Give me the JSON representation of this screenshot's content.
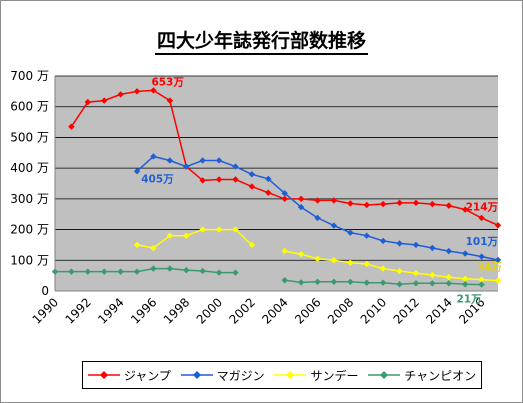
{
  "chart_data": {
    "type": "line",
    "title": "四大少年誌発行部数推移",
    "ylim": [
      0,
      700
    ],
    "yticks": [
      0,
      100,
      200,
      300,
      400,
      500,
      600,
      700
    ],
    "ytick_labels": [
      "0",
      "100 万",
      "200 万",
      "300 万",
      "400 万",
      "500 万",
      "600 万",
      "700 万"
    ],
    "xlim": [
      1990,
      2017
    ],
    "xticks": [
      1990,
      1992,
      1994,
      1996,
      1998,
      2000,
      2002,
      2004,
      2006,
      2008,
      2010,
      2012,
      2014,
      2016
    ],
    "grid": true,
    "legend_position": "bottom",
    "series": [
      {
        "name": "ジャンプ",
        "color": "#ff0000",
        "marker": "diamond",
        "points": [
          [
            1991,
            535
          ],
          [
            1992,
            615
          ],
          [
            1993,
            620
          ],
          [
            1994,
            640
          ],
          [
            1995,
            650
          ],
          [
            1996,
            653
          ],
          [
            1997,
            620
          ],
          [
            1998,
            405
          ],
          [
            1999,
            360
          ],
          [
            2000,
            363
          ],
          [
            2001,
            363
          ],
          [
            2002,
            340
          ],
          [
            2003,
            320
          ],
          [
            2004,
            300
          ],
          [
            2005,
            300
          ],
          [
            2006,
            295
          ],
          [
            2007,
            295
          ],
          [
            2008,
            285
          ],
          [
            2009,
            280
          ],
          [
            2010,
            283
          ],
          [
            2011,
            287
          ],
          [
            2012,
            287
          ],
          [
            2013,
            283
          ],
          [
            2014,
            278
          ],
          [
            2015,
            265
          ],
          [
            2016,
            238
          ],
          [
            2017,
            214
          ]
        ]
      },
      {
        "name": "マガジン",
        "color": "#1f5fd6",
        "marker": "diamond",
        "points": [
          [
            1995,
            390
          ],
          [
            1996,
            438
          ],
          [
            1997,
            425
          ],
          [
            1998,
            405
          ],
          [
            1999,
            425
          ],
          [
            2000,
            425
          ],
          [
            2001,
            405
          ],
          [
            2002,
            380
          ],
          [
            2003,
            365
          ],
          [
            2004,
            318
          ],
          [
            2005,
            273
          ],
          [
            2006,
            238
          ],
          [
            2007,
            213
          ],
          [
            2008,
            190
          ],
          [
            2009,
            180
          ],
          [
            2010,
            163
          ],
          [
            2011,
            155
          ],
          [
            2012,
            150
          ],
          [
            2013,
            140
          ],
          [
            2014,
            130
          ],
          [
            2015,
            122
          ],
          [
            2016,
            112
          ],
          [
            2017,
            101
          ]
        ]
      },
      {
        "name": "サンデー",
        "color": "#ffff00",
        "marker": "diamond",
        "segments": [
          [
            [
              1995,
              150
            ],
            [
              1996,
              140
            ],
            [
              1997,
              180
            ],
            [
              1998,
              180
            ],
            [
              1999,
              200
            ],
            [
              2000,
              200
            ],
            [
              2001,
              200
            ],
            [
              2002,
              150
            ]
          ],
          [
            [
              2004,
              130
            ],
            [
              2005,
              120
            ],
            [
              2006,
              105
            ],
            [
              2007,
              100
            ],
            [
              2008,
              92
            ],
            [
              2009,
              88
            ],
            [
              2010,
              73
            ],
            [
              2011,
              65
            ],
            [
              2012,
              58
            ],
            [
              2013,
              52
            ],
            [
              2014,
              45
            ],
            [
              2015,
              40
            ],
            [
              2016,
              37
            ],
            [
              2017,
              34
            ]
          ]
        ]
      },
      {
        "name": "チャンピオン",
        "color": "#3b9a6e",
        "marker": "diamond",
        "segments": [
          [
            [
              1990,
              63
            ],
            [
              1991,
              63
            ],
            [
              1992,
              63
            ],
            [
              1993,
              63
            ],
            [
              1994,
              63
            ],
            [
              1995,
              63
            ],
            [
              1996,
              73
            ],
            [
              1997,
              73
            ],
            [
              1998,
              68
            ],
            [
              1999,
              65
            ],
            [
              2000,
              60
            ],
            [
              2001,
              60
            ]
          ],
          [
            [
              2004,
              35
            ],
            [
              2005,
              28
            ],
            [
              2006,
              30
            ],
            [
              2007,
              30
            ],
            [
              2008,
              30
            ],
            [
              2009,
              27
            ],
            [
              2010,
              27
            ],
            [
              2011,
              22
            ],
            [
              2012,
              25
            ],
            [
              2013,
              25
            ],
            [
              2014,
              25
            ],
            [
              2015,
              22
            ],
            [
              2016,
              21
            ]
          ]
        ]
      }
    ],
    "annotations": [
      {
        "text": "653万",
        "x": 1996,
        "y": 653,
        "series": "ジャンプ"
      },
      {
        "text": "405万",
        "x": 1998,
        "y": 405,
        "series": "マガジン"
      },
      {
        "text": "214万",
        "x": 2017,
        "y": 214,
        "series": "ジャンプ"
      },
      {
        "text": "101万",
        "x": 2017,
        "y": 101,
        "series": "マガジン"
      },
      {
        "text": "34万",
        "x": 2017,
        "y": 34,
        "series": "サンデー"
      },
      {
        "text": "21万",
        "x": 2016,
        "y": 21,
        "series": "チャンピオン"
      }
    ]
  },
  "legend": {
    "items": [
      {
        "label": "ジャンプ",
        "color": "#ff0000"
      },
      {
        "label": "マガジン",
        "color": "#1f5fd6"
      },
      {
        "label": "サンデー",
        "color": "#ffff00"
      },
      {
        "label": "チャンピオン",
        "color": "#3b9a6e"
      }
    ]
  }
}
